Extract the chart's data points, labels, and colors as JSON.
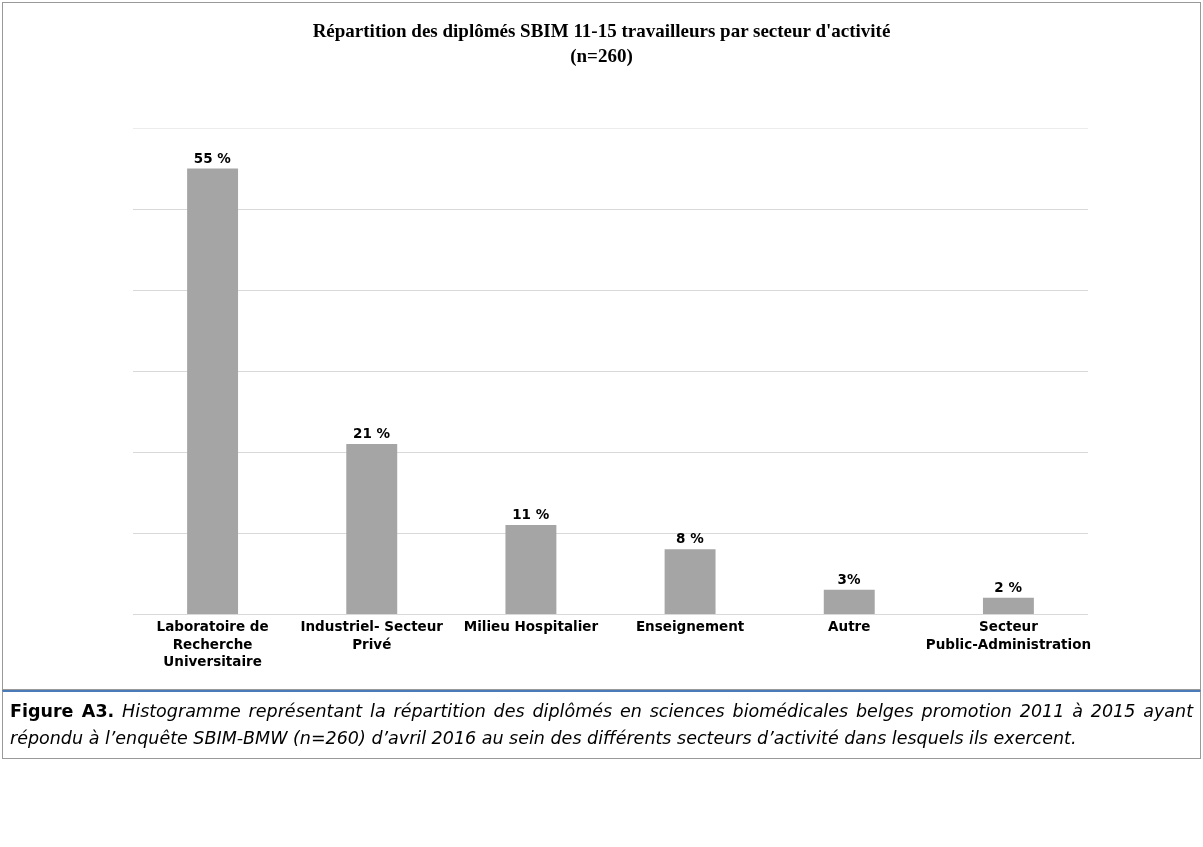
{
  "chart_data": {
    "type": "bar",
    "title": "Répartition des diplômés SBIM 11-15 travailleurs par secteur d'activité\n(n=260)",
    "categories": [
      "Laboratoire de Recherche Universitaire",
      "Industriel- Secteur Privé",
      "Milieu Hospitalier",
      "Enseignement",
      "Autre",
      "Secteur Public-Administration"
    ],
    "values": [
      55,
      21,
      11,
      8,
      3,
      2
    ],
    "value_labels": [
      "55 %",
      "21 %",
      "11 %",
      "8 %",
      "3%",
      "2 %"
    ],
    "color": "#a5a5a5",
    "ylim": [
      0,
      60
    ],
    "yticks": [
      {
        "value": 0,
        "label": null
      },
      {
        "value": 10,
        "label": null
      },
      {
        "value": 20,
        "label": null
      },
      {
        "value": 30,
        "label": null
      },
      {
        "value": 40,
        "label": null
      },
      {
        "value": 50,
        "label": null
      },
      {
        "value": 60,
        "label": null
      }
    ],
    "grid": "y",
    "tick_labels": "x",
    "legend": false,
    "annotations": [
      "Figure A3. Histogramme représentant la répartition des diplômés en sciences biomédicales belges promotion 2011 à 2015 ayant répondu à l’enquête SBIM-BMW (n=260) d’avril 2016 au sein des différents secteurs d’activité dans lesquels ils exercent."
    ]
  }
}
